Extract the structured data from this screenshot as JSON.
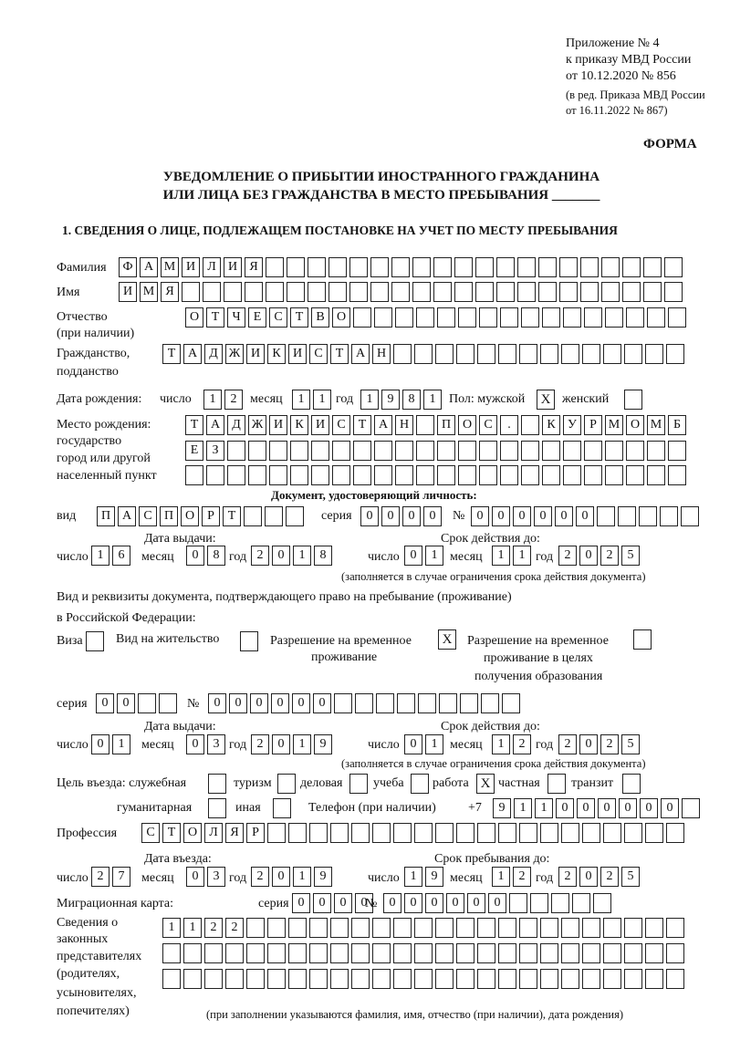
{
  "header": {
    "line1": "Приложение № 4",
    "line2": "к приказу МВД России",
    "line3": "от 10.12.2020 № 856",
    "line4": "(в ред. Приказа МВД России",
    "line5": "от 16.11.2022 № 867)",
    "forma": "ФОРМА",
    "title1": "УВЕДОМЛЕНИЕ О ПРИБЫТИИ ИНОСТРАННОГО ГРАЖДАНИНА",
    "title2": "ИЛИ ЛИЦА БЕЗ ГРАЖДАНСТВА В МЕСТО ПРЕБЫВАНИЯ _______",
    "section": "1. СВЕДЕНИЯ О ЛИЦЕ, ПОДЛЕЖАЩЕМ ПОСТАНОВКЕ НА УЧЕТ ПО МЕСТУ ПРЕБЫВАНИЯ"
  },
  "labels": {
    "surname": "Фамилия",
    "name": "Имя",
    "patronymic": "Отчество",
    "patronymic2": "(при наличии)",
    "citizenship": "Гражданство,",
    "citizenship2": "подданство",
    "birth_date": "Дата рождения:",
    "day": "число",
    "month": "месяц",
    "year": "год",
    "sex": "Пол: мужской",
    "female": "женский",
    "birthplace1": "Место рождения:",
    "birthplace2": "государство",
    "birthplace3": "город или другой",
    "birthplace4": "населенный пункт",
    "id_doc": "Документ, удостоверяющий личность:",
    "doc_type": "вид",
    "series": "серия",
    "number": "№",
    "issue_date": "Дата выдачи:",
    "valid_until": "Срок действия до:",
    "validity_note": "(заполняется в случае ограничения срока действия документа)",
    "permit1": "Вид и реквизиты документа, подтверждающего право на пребывание (проживание)",
    "permit2": "в Российской Федерации:",
    "visa": "Виза",
    "residence": "Вид на жительство",
    "temp1": "Разрешение на временное",
    "temp2": "проживание",
    "edu1": "Разрешение на временное",
    "edu2": "проживание в целях",
    "edu3": "получения образования",
    "purpose": "Цель въезда: служебная",
    "tourism": "туризм",
    "business": "деловая",
    "study": "учеба",
    "work": "работа",
    "private": "частная",
    "transit": "транзит",
    "humanitarian": "гуманитарная",
    "other": "иная",
    "phone": "Телефон (при наличии)",
    "phone_prefix": "+7",
    "profession": "Профессия",
    "entry_date": "Дата въезда:",
    "stay_until": "Срок пребывания до:",
    "migration_card": "Миграционная карта:",
    "reps1": "Сведения о",
    "reps2": "законных",
    "reps3": "представителях",
    "reps4": "(родителях,",
    "reps5": "усыновителях,",
    "reps6": "попечителях)",
    "reps_note": "(при заполнении указываются фамилия, имя, отчество (при наличии), дата рождения)"
  },
  "values": {
    "surname": "ФАМИЛИЯ",
    "name": "ИМЯ",
    "patronymic": "ОТЧЕСТВО",
    "citizenship": "ТАДЖИКИСТАН",
    "birth_day": "12",
    "birth_month": "11",
    "birth_year": "1981",
    "sex_male": "X",
    "sex_female": "",
    "birthplace1": "ТАДЖИКИСТАН ПОС. КУРМОМБ",
    "birthplace2": "ЕЗ",
    "birthplace3": "",
    "doc_type": "ПАСПОРТ",
    "doc_series": "0000",
    "doc_number": "000000",
    "doc_issue_day": "16",
    "doc_issue_month": "08",
    "doc_issue_year": "2018",
    "doc_valid_day": "01",
    "doc_valid_month": "11",
    "doc_valid_year": "2025",
    "visa": "",
    "residence": "",
    "temp_residence": "X",
    "temp_residence_edu": "",
    "permit_series": "00",
    "permit_number": "000000",
    "permit_issue_day": "01",
    "permit_issue_month": "03",
    "permit_issue_year": "2019",
    "permit_valid_day": "01",
    "permit_valid_month": "12",
    "permit_valid_year": "2025",
    "p_official": "",
    "p_tourism": "",
    "p_business": "",
    "p_study": "",
    "p_work": "X",
    "p_private": "",
    "p_transit": "",
    "p_humanitarian": "",
    "p_other": "",
    "phone": "911000000",
    "profession": "СТОЛЯР",
    "entry_day": "27",
    "entry_month": "03",
    "entry_year": "2019",
    "stay_day": "19",
    "stay_month": "12",
    "stay_year": "2025",
    "mig_series": "0000",
    "mig_number": "000000",
    "reps1": "1122",
    "reps2": "",
    "reps3": ""
  }
}
